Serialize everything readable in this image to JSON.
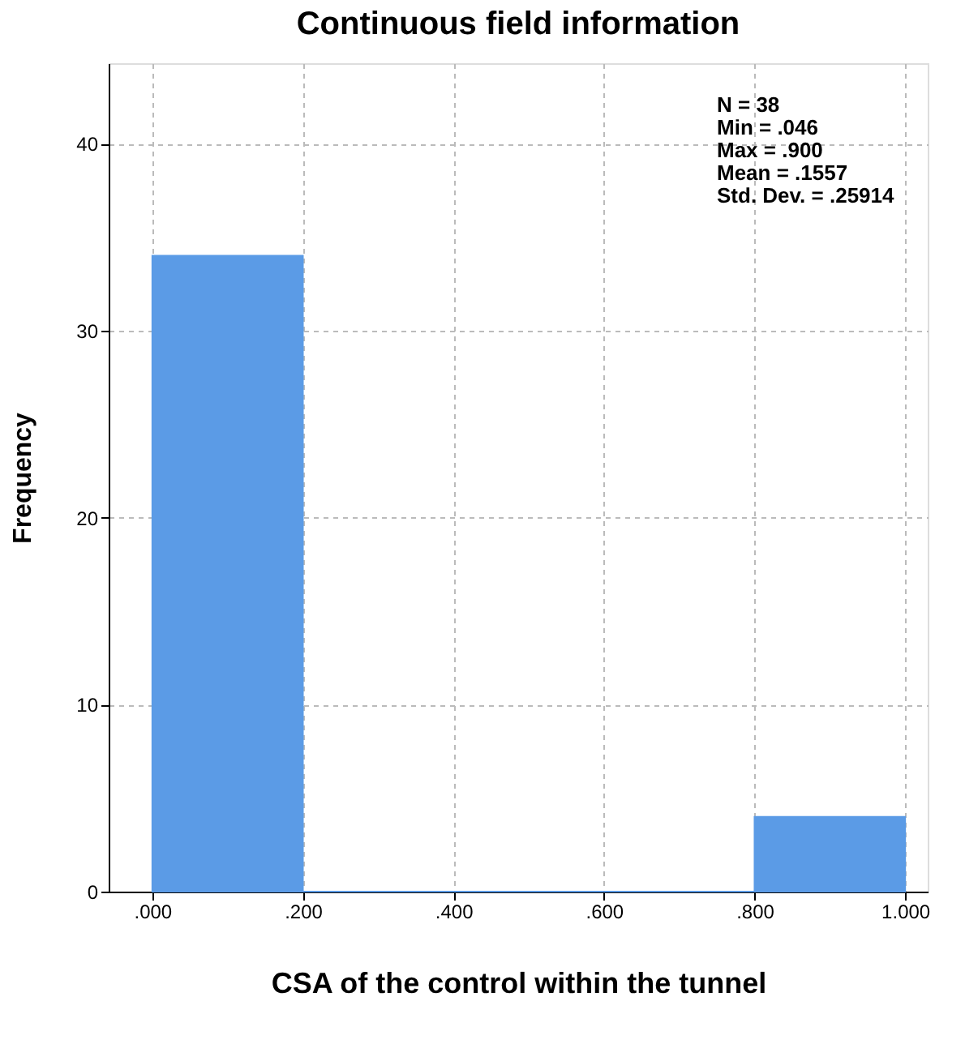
{
  "chart_data": {
    "type": "histogram",
    "title": "Continuous field information",
    "xlabel": "CSA of the control within the tunnel",
    "ylabel": "Frequency",
    "bins": [
      0,
      0.2,
      0.4,
      0.6,
      0.8,
      1.0
    ],
    "values": [
      34,
      0,
      0,
      0,
      4
    ],
    "color": "#5b9be6",
    "xlim": [
      -0.058,
      1.03
    ],
    "xticks": [
      {
        "value": 0,
        "label": ".000"
      },
      {
        "value": 0.2,
        "label": ".200"
      },
      {
        "value": 0.4,
        "label": ".400"
      },
      {
        "value": 0.6,
        "label": ".600"
      },
      {
        "value": 0.8,
        "label": ".800"
      },
      {
        "value": 1.0,
        "label": "1.000"
      }
    ],
    "ylim": [
      0,
      44.3
    ],
    "yticks": [
      0,
      10,
      20,
      30,
      40
    ],
    "grid": true,
    "annotations": [
      "N = 38",
      "Min = .046",
      "Max = .900",
      "Mean = .1557",
      "Std. Dev. = .25914"
    ]
  }
}
